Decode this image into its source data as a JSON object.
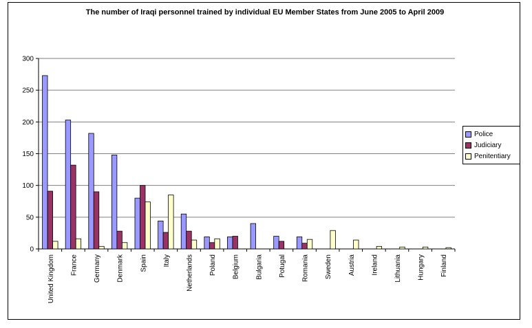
{
  "chart_data": {
    "type": "bar",
    "title": "The number of Iraqi personnel trained by individual EU Member States from June 2005 to April 2009",
    "categories": [
      "United Kingdom",
      "France",
      "Germany",
      "Denmark",
      "Spain",
      "Italy",
      "Netherlands",
      "Poland",
      "Belgium",
      "Bulgaria",
      "Potugal",
      "Romania",
      "Sweden",
      "Austria",
      "Ireland",
      "Lithuania",
      "Hungary",
      "Finland"
    ],
    "series": [
      {
        "name": "Police",
        "color": "#9999ff",
        "values": [
          273,
          203,
          182,
          148,
          80,
          44,
          55,
          19,
          19,
          40,
          20,
          19,
          0,
          0,
          0,
          0,
          0,
          0
        ]
      },
      {
        "name": "Judiciary",
        "color": "#993366",
        "values": [
          91,
          132,
          90,
          28,
          100,
          26,
          28,
          10,
          20,
          0,
          12,
          9,
          0,
          0,
          0,
          0,
          0,
          0
        ]
      },
      {
        "name": "Penitentiary",
        "color": "#ffffcc",
        "values": [
          12,
          16,
          4,
          10,
          74,
          85,
          14,
          16,
          0,
          0,
          0,
          15,
          29,
          14,
          4,
          3,
          3,
          2
        ]
      }
    ],
    "yticks": [
      0,
      50,
      100,
      150,
      200,
      250,
      300
    ],
    "ylim": [
      0,
      300
    ],
    "grid": true,
    "legend": "right"
  }
}
